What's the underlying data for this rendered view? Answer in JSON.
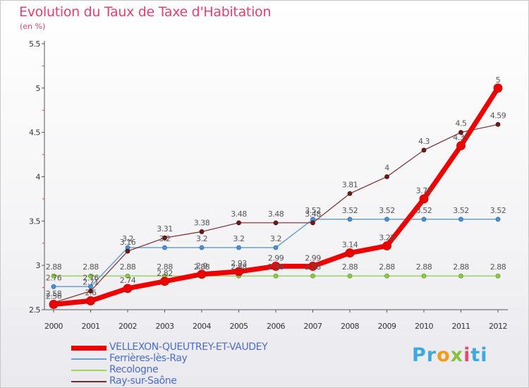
{
  "title": "Evolution du Taux de Taxe d'Habitation",
  "subtitle": "(en %)",
  "logo_text": "Proxiti",
  "chart_data": {
    "type": "line",
    "title": "Evolution du Taux de Taxe d'Habitation",
    "subtitle": "(en %)",
    "xlabel": "",
    "ylabel": "",
    "x": [
      2000,
      2001,
      2002,
      2003,
      2004,
      2005,
      2006,
      2007,
      2008,
      2009,
      2010,
      2011,
      2012
    ],
    "ylim": [
      2.5,
      5.5
    ],
    "yticks": [
      2.5,
      3,
      3.5,
      4,
      4.5,
      5,
      5.5
    ],
    "grid": false,
    "legend_position": "bottom-left",
    "series": [
      {
        "name": "VELLEXON-QUEUTREY-ET-VAUDEY",
        "color": "#ee0000",
        "values": [
          2.56,
          2.6,
          2.74,
          2.82,
          2.9,
          2.93,
          2.99,
          2.99,
          3.14,
          3.22,
          3.75,
          4.35,
          5
        ],
        "labels": [
          "2.56",
          "2.6",
          "2.74",
          "2.82",
          "2.9",
          "2.93",
          "2.99",
          "2.99",
          "3.14",
          "3.22",
          "3.75",
          "4.35",
          "5"
        ]
      },
      {
        "name": "Ferrières-lès-Ray",
        "color": "#6a9fd0",
        "values": [
          2.76,
          2.76,
          3.2,
          3.2,
          3.2,
          3.2,
          3.2,
          3.52,
          3.52,
          3.52,
          3.52,
          3.52,
          3.52
        ],
        "labels": [
          "2.76",
          "2.76",
          "3.2",
          "3.2",
          "3.2",
          "3.2",
          "3.2",
          "3.52",
          "3.52",
          "3.52",
          "3.52",
          "3.52",
          "3.52"
        ]
      },
      {
        "name": "Recologne",
        "color": "#9bd45a",
        "values": [
          2.88,
          2.88,
          2.88,
          2.88,
          2.88,
          2.88,
          2.88,
          2.88,
          2.88,
          2.88,
          2.88,
          2.88,
          2.88
        ],
        "labels": [
          "2.88",
          "2.88",
          "2.88",
          "2.88",
          "2.88",
          "2.88",
          "2.88",
          "2.88",
          "2.88",
          "2.88",
          "2.88",
          "2.88",
          "2.88"
        ]
      },
      {
        "name": "Ray-sur-Saône",
        "color": "#7a2a2a",
        "values": [
          2.58,
          2.71,
          3.16,
          3.31,
          3.38,
          3.48,
          3.48,
          3.48,
          3.81,
          4,
          4.3,
          4.5,
          4.59
        ],
        "labels": [
          "2.58",
          "2.71",
          "3.16",
          "3.31",
          "3.38",
          "3.48",
          "3.48",
          "3.48",
          "3.81",
          "4",
          "4.3",
          "4.5",
          "4.59"
        ]
      }
    ]
  }
}
